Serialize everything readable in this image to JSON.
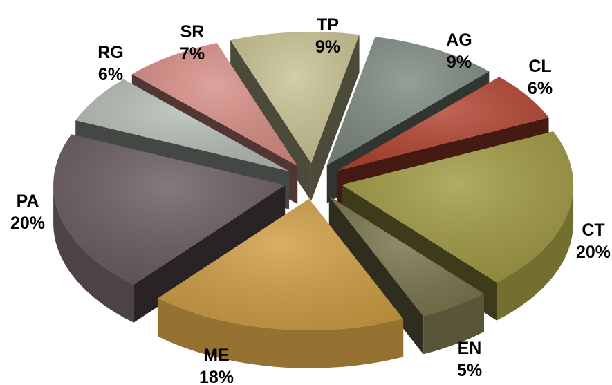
{
  "chart_data": {
    "type": "pie",
    "style": "3d-exploded",
    "legend": "none",
    "slices": [
      {
        "label": "CT",
        "percent_label": "20%",
        "value": 20,
        "color": "#a09a43"
      },
      {
        "label": "EN",
        "percent_label": "5%",
        "value": 5,
        "color": "#7a764f"
      },
      {
        "label": "ME",
        "percent_label": "18%",
        "value": 18,
        "color": "#cf9e44"
      },
      {
        "label": "PA",
        "percent_label": "20%",
        "value": 20,
        "color": "#6b5b63"
      },
      {
        "label": "RG",
        "percent_label": "6%",
        "value": 6,
        "color": "#b3bdb4"
      },
      {
        "label": "SR",
        "percent_label": "7%",
        "value": 7,
        "color": "#d88e86"
      },
      {
        "label": "TP",
        "percent_label": "9%",
        "value": 9,
        "color": "#c9c394"
      },
      {
        "label": "AG",
        "percent_label": "9%",
        "value": 9,
        "color": "#7f8b83"
      },
      {
        "label": "CL",
        "percent_label": "6%",
        "value": 6,
        "color": "#b34532"
      }
    ]
  }
}
